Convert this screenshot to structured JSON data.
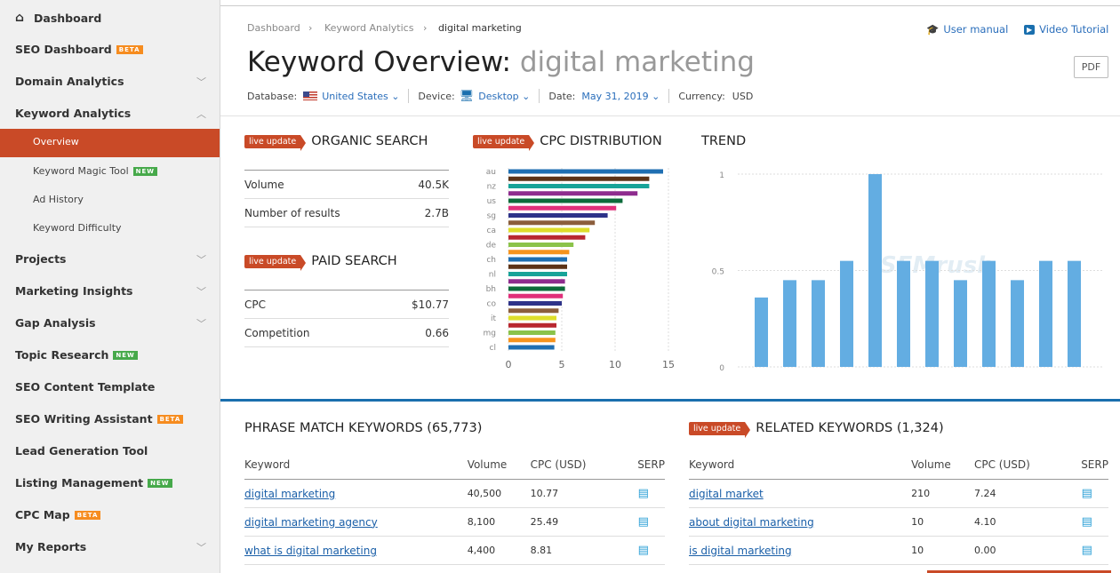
{
  "sidebar": {
    "dashboard": "Dashboard",
    "items": [
      {
        "label": "SEO Dashboard",
        "badge": "BETA"
      },
      {
        "label": "Domain Analytics"
      },
      {
        "label": "Keyword Analytics"
      },
      {
        "label": "Projects"
      },
      {
        "label": "Marketing Insights"
      },
      {
        "label": "Gap Analysis"
      },
      {
        "label": "Topic Research",
        "badge": "NEW"
      },
      {
        "label": "SEO Content Template"
      },
      {
        "label": "SEO Writing Assistant",
        "badge": "BETA"
      },
      {
        "label": "Lead Generation Tool"
      },
      {
        "label": "Listing Management",
        "badge": "NEW"
      },
      {
        "label": "CPC Map",
        "badge": "BETA"
      },
      {
        "label": "My Reports"
      }
    ],
    "sub": [
      {
        "label": "Overview",
        "active": true
      },
      {
        "label": "Keyword Magic Tool",
        "badge": "NEW"
      },
      {
        "label": "Ad History"
      },
      {
        "label": "Keyword Difficulty"
      }
    ]
  },
  "breadcrumb": [
    "Dashboard",
    "Keyword Analytics",
    "digital marketing"
  ],
  "header": {
    "title": "Keyword Overview:",
    "keyword": "digital marketing",
    "user_manual": "User manual",
    "video_tutorial": "Video Tutorial",
    "pdf": "PDF"
  },
  "filters": {
    "database_label": "Database:",
    "database": "United States",
    "device_label": "Device:",
    "device": "Desktop",
    "date_label": "Date:",
    "date": "May 31, 2019",
    "currency_label": "Currency:",
    "currency": "USD"
  },
  "live_label": "live update",
  "organic": {
    "title": "ORGANIC SEARCH",
    "rows": [
      {
        "k": "Volume",
        "v": "40.5K"
      },
      {
        "k": "Number of results",
        "v": "2.7B"
      }
    ]
  },
  "paid": {
    "title": "PAID SEARCH",
    "rows": [
      {
        "k": "CPC",
        "v": "$10.77"
      },
      {
        "k": "Competition",
        "v": "0.66"
      }
    ]
  },
  "chart_data": [
    {
      "type": "bar",
      "orientation": "horizontal",
      "title": "CPC DISTRIBUTION",
      "categories": [
        "au",
        "",
        "nz",
        "",
        "us",
        "",
        "sg",
        "",
        "ca",
        "",
        "de",
        "",
        "ch",
        "",
        "nl",
        "",
        "bh",
        "",
        "co",
        "",
        "it",
        "",
        "mg",
        "",
        "cl"
      ],
      "values": [
        14.5,
        13.2,
        13.2,
        12.1,
        10.7,
        10.1,
        9.3,
        8.1,
        7.6,
        7.2,
        6.1,
        5.7,
        5.5,
        5.5,
        5.5,
        5.3,
        5.3,
        5.1,
        5.0,
        4.7,
        4.5,
        4.5,
        4.4,
        4.4,
        4.3
      ],
      "colors": [
        "#1f6fb2",
        "#5c3317",
        "#17a398",
        "#8e2c8e",
        "#0b6b3a",
        "#e0307a",
        "#2e3389",
        "#8b5e3c",
        "#dede2a",
        "#b8272f",
        "#8bc34a",
        "#f7941d"
      ],
      "xlim": [
        0,
        15
      ],
      "xticks": [
        "0",
        "5",
        "10",
        "15"
      ],
      "grid": true
    },
    {
      "type": "bar",
      "title": "TREND",
      "values": [
        0.36,
        0.45,
        0.45,
        0.55,
        1,
        0.55,
        0.55,
        0.45,
        0.55,
        0.45,
        0.55,
        0.55
      ],
      "ylim": [
        0,
        1
      ],
      "yticks": [
        "0",
        "0.5",
        "1"
      ],
      "color": "#63ade2",
      "grid": true
    }
  ],
  "phrase": {
    "title": "PHRASE MATCH KEYWORDS (65,773)",
    "headers": [
      "Keyword",
      "Volume",
      "CPC (USD)",
      "SERP"
    ],
    "rows": [
      {
        "kw": "digital marketing",
        "vol": "40,500",
        "cpc": "10.77"
      },
      {
        "kw": "digital marketing agency",
        "vol": "8,100",
        "cpc": "25.49"
      },
      {
        "kw": "what is digital marketing",
        "vol": "4,400",
        "cpc": "8.81"
      }
    ]
  },
  "related": {
    "title": "RELATED KEYWORDS (1,324)",
    "headers": [
      "Keyword",
      "Volume",
      "CPC (USD)",
      "SERP"
    ],
    "rows": [
      {
        "kw": "digital market",
        "vol": "210",
        "cpc": "7.24"
      },
      {
        "kw": "about digital marketing",
        "vol": "10",
        "cpc": "4.10"
      },
      {
        "kw": "is digital marketing",
        "vol": "10",
        "cpc": "0.00"
      }
    ]
  }
}
